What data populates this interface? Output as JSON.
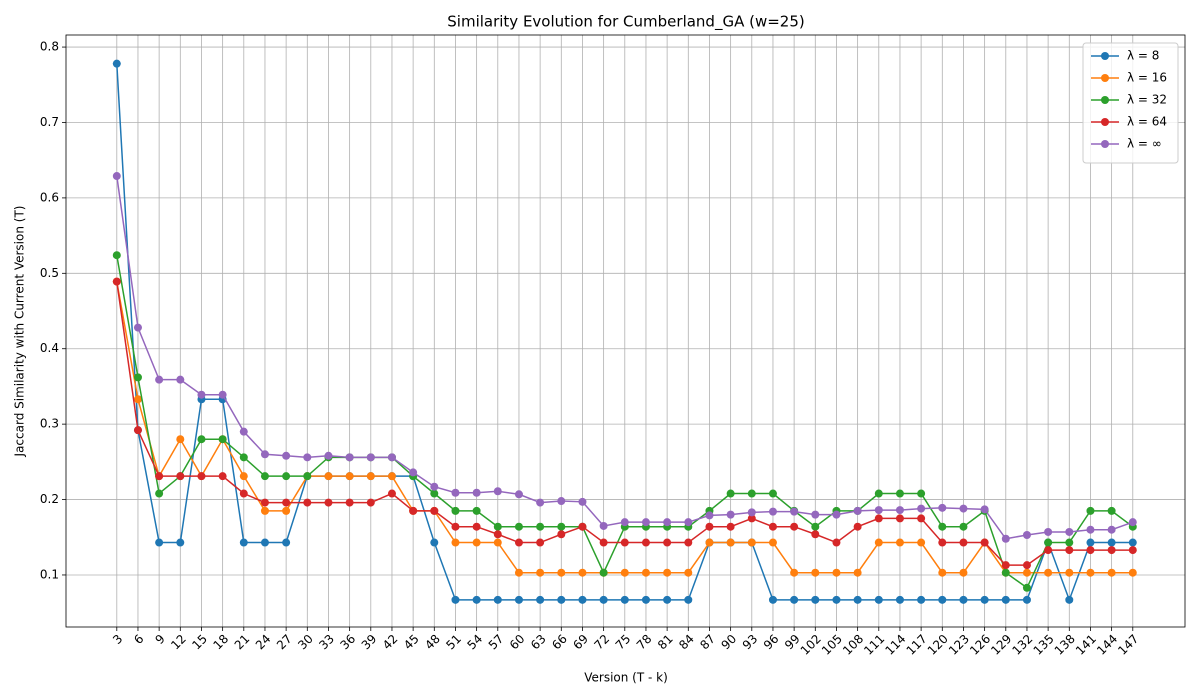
{
  "chart_data": {
    "type": "line",
    "title": "Similarity Evolution for Cumberland_GA (w=25)",
    "xlabel": "Version (T - k)",
    "ylabel": "Jaccard Similarity with Current Version (T)",
    "x": [
      3,
      6,
      9,
      12,
      15,
      18,
      21,
      24,
      27,
      30,
      33,
      36,
      39,
      42,
      45,
      48,
      51,
      54,
      57,
      60,
      63,
      66,
      69,
      72,
      75,
      78,
      81,
      84,
      87,
      90,
      93,
      96,
      99,
      102,
      105,
      108,
      111,
      114,
      117,
      120,
      123,
      126,
      129,
      132,
      135,
      138,
      141,
      144,
      147
    ],
    "xlim": [
      -4.2,
      154.4
    ],
    "xticks": [
      3,
      6,
      9,
      12,
      15,
      18,
      21,
      24,
      27,
      30,
      33,
      36,
      39,
      42,
      45,
      48,
      51,
      54,
      57,
      60,
      63,
      66,
      69,
      72,
      75,
      78,
      81,
      84,
      87,
      90,
      93,
      96,
      99,
      102,
      105,
      108,
      111,
      114,
      117,
      120,
      123,
      126,
      129,
      132,
      135,
      138,
      141,
      144,
      147
    ],
    "ylim": [
      0.031,
      0.816
    ],
    "yticks": [
      0.1,
      0.2,
      0.3,
      0.4,
      0.5,
      0.6,
      0.7,
      0.8
    ],
    "grid": true,
    "legend": "upper right",
    "series": [
      {
        "name": "λ = 8",
        "color": "#1f77b4",
        "values": [
          0.778,
          0.292,
          0.143,
          0.143,
          0.333,
          0.333,
          0.143,
          0.143,
          0.143,
          0.231,
          0.231,
          0.231,
          0.231,
          0.231,
          0.231,
          0.143,
          0.067,
          0.067,
          0.067,
          0.067,
          0.067,
          0.067,
          0.067,
          0.067,
          0.067,
          0.067,
          0.067,
          0.067,
          0.143,
          0.143,
          0.143,
          0.067,
          0.067,
          0.067,
          0.067,
          0.067,
          0.067,
          0.067,
          0.067,
          0.067,
          0.067,
          0.067,
          0.067,
          0.067,
          0.143,
          0.067,
          0.143,
          0.143,
          0.143
        ]
      },
      {
        "name": "λ = 16",
        "color": "#ff7f0e",
        "values": [
          0.489,
          0.333,
          0.231,
          0.28,
          0.231,
          0.28,
          0.231,
          0.185,
          0.185,
          0.231,
          0.231,
          0.231,
          0.231,
          0.231,
          0.185,
          0.185,
          0.143,
          0.143,
          0.143,
          0.103,
          0.103,
          0.103,
          0.103,
          0.103,
          0.103,
          0.103,
          0.103,
          0.103,
          0.143,
          0.143,
          0.143,
          0.143,
          0.103,
          0.103,
          0.103,
          0.103,
          0.143,
          0.143,
          0.143,
          0.103,
          0.103,
          0.143,
          0.103,
          0.103,
          0.103,
          0.103,
          0.103,
          0.103,
          0.103
        ]
      },
      {
        "name": "λ = 32",
        "color": "#2ca02c",
        "values": [
          0.524,
          0.362,
          0.208,
          0.231,
          0.28,
          0.28,
          0.256,
          0.231,
          0.231,
          0.231,
          0.256,
          0.256,
          0.256,
          0.256,
          0.231,
          0.208,
          0.185,
          0.185,
          0.164,
          0.164,
          0.164,
          0.164,
          0.164,
          0.103,
          0.164,
          0.164,
          0.164,
          0.164,
          0.185,
          0.208,
          0.208,
          0.208,
          0.185,
          0.164,
          0.185,
          0.185,
          0.208,
          0.208,
          0.208,
          0.164,
          0.164,
          0.185,
          0.103,
          0.083,
          0.143,
          0.143,
          0.185,
          0.185,
          0.164
        ]
      },
      {
        "name": "λ = 64",
        "color": "#d62728",
        "values": [
          0.489,
          0.292,
          0.231,
          0.231,
          0.231,
          0.231,
          0.208,
          0.196,
          0.196,
          0.196,
          0.196,
          0.196,
          0.196,
          0.208,
          0.185,
          0.185,
          0.164,
          0.164,
          0.154,
          0.143,
          0.143,
          0.154,
          0.164,
          0.143,
          0.143,
          0.143,
          0.143,
          0.143,
          0.164,
          0.164,
          0.175,
          0.164,
          0.164,
          0.154,
          0.143,
          0.164,
          0.175,
          0.175,
          0.175,
          0.143,
          0.143,
          0.143,
          0.113,
          0.113,
          0.133,
          0.133,
          0.133,
          0.133,
          0.133
        ]
      },
      {
        "name": "λ = ∞",
        "color": "#9467bd",
        "values": [
          0.629,
          0.428,
          0.359,
          0.359,
          0.339,
          0.339,
          0.29,
          0.26,
          0.258,
          0.256,
          0.258,
          0.256,
          0.256,
          0.256,
          0.236,
          0.217,
          0.209,
          0.209,
          0.211,
          0.207,
          0.196,
          0.198,
          0.197,
          0.165,
          0.17,
          0.17,
          0.17,
          0.17,
          0.179,
          0.18,
          0.183,
          0.184,
          0.184,
          0.18,
          0.18,
          0.185,
          0.186,
          0.186,
          0.188,
          0.189,
          0.188,
          0.187,
          0.148,
          0.153,
          0.157,
          0.157,
          0.16,
          0.16,
          0.17
        ]
      }
    ]
  }
}
